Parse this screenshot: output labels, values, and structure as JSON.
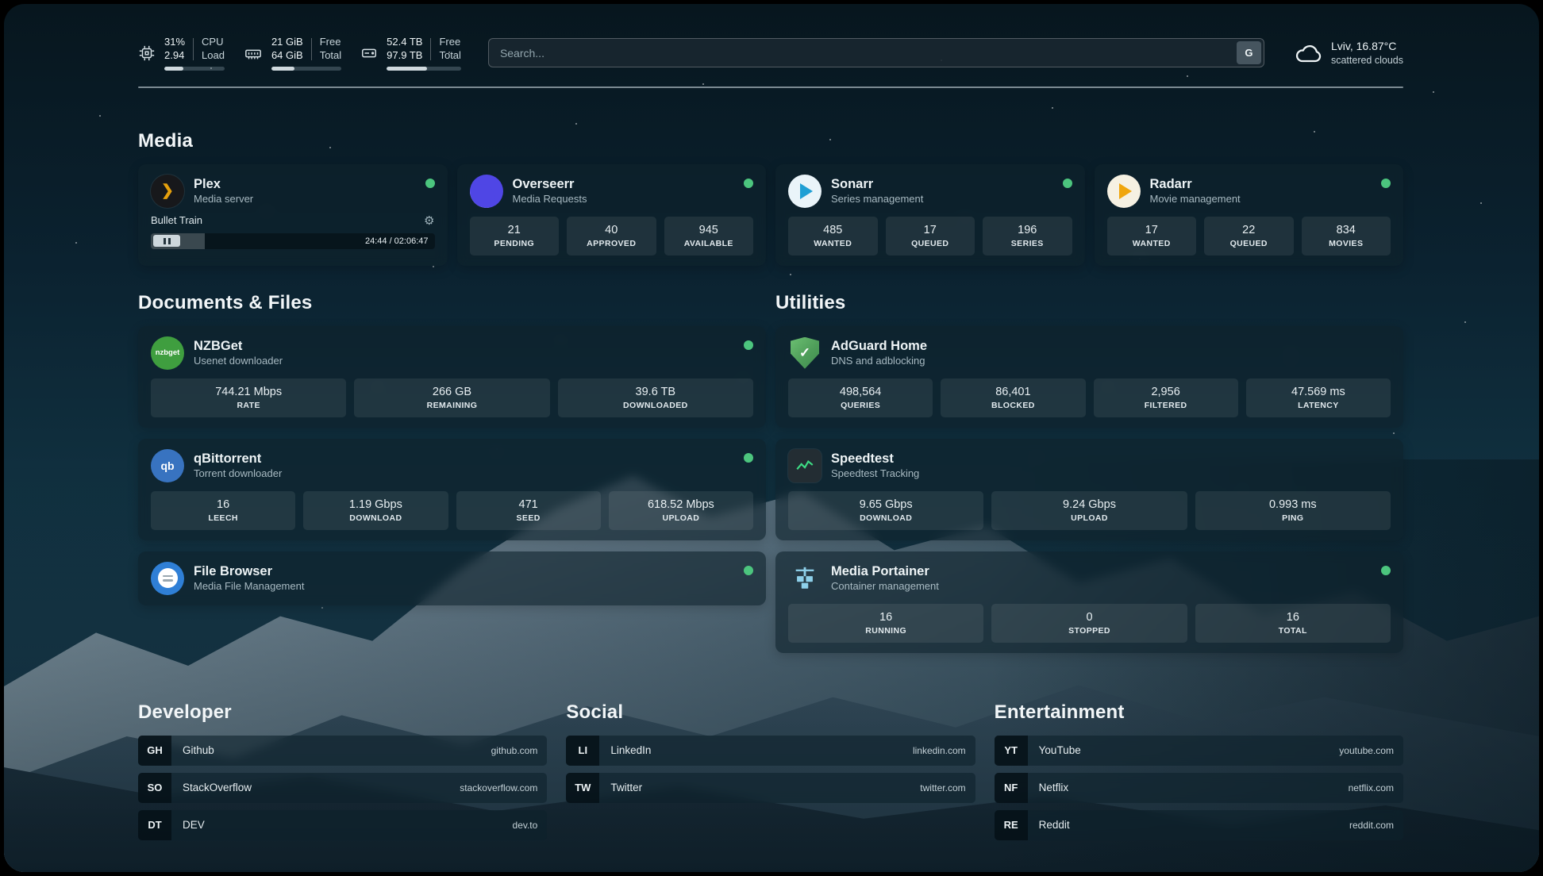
{
  "colors": {
    "status_online": "#4cc57e",
    "accent_amber": "#e5a00d"
  },
  "icons": {
    "plex_glyph": "❯",
    "gear": "⚙",
    "check": "✓",
    "nzbget_label": "nzbget",
    "qb_label": "qb"
  },
  "topbar": {
    "cpu": {
      "value": "31%",
      "sub": "2.94",
      "unit_top": "CPU",
      "unit_bottom": "Load",
      "progress_pct": 31
    },
    "ram": {
      "value": "21 GiB",
      "sub": "64 GiB",
      "unit_top": "Free",
      "unit_bottom": "Total",
      "progress_pct": 33
    },
    "disk": {
      "value": "52.4 TB",
      "sub": "97.9 TB",
      "unit_top": "Free",
      "unit_bottom": "Total",
      "progress_pct": 54
    },
    "search": {
      "placeholder": "Search...",
      "engine_button": "G"
    },
    "weather": {
      "location": "Lviv, 16.87°C",
      "condition": "scattered clouds"
    }
  },
  "sections": {
    "media": {
      "title": "Media",
      "apps": [
        {
          "name": "Plex",
          "desc": "Media server",
          "online": true,
          "player": {
            "title": "Bullet Train",
            "time": "24:44 / 02:06:47",
            "progress_pct": 19
          }
        },
        {
          "name": "Overseerr",
          "desc": "Media Requests",
          "online": true,
          "stats": [
            {
              "value": "21",
              "label": "PENDING"
            },
            {
              "value": "40",
              "label": "APPROVED"
            },
            {
              "value": "945",
              "label": "AVAILABLE"
            }
          ]
        },
        {
          "name": "Sonarr",
          "desc": "Series management",
          "online": true,
          "stats": [
            {
              "value": "485",
              "label": "WANTED"
            },
            {
              "value": "17",
              "label": "QUEUED"
            },
            {
              "value": "196",
              "label": "SERIES"
            }
          ]
        },
        {
          "name": "Radarr",
          "desc": "Movie management",
          "online": true,
          "stats": [
            {
              "value": "17",
              "label": "WANTED"
            },
            {
              "value": "22",
              "label": "QUEUED"
            },
            {
              "value": "834",
              "label": "MOVIES"
            }
          ]
        }
      ]
    },
    "documents": {
      "title": "Documents & Files",
      "apps": [
        {
          "name": "NZBGet",
          "desc": "Usenet downloader",
          "online": true,
          "stats": [
            {
              "value": "744.21 Mbps",
              "label": "RATE"
            },
            {
              "value": "266 GB",
              "label": "REMAINING"
            },
            {
              "value": "39.6 TB",
              "label": "DOWNLOADED"
            }
          ]
        },
        {
          "name": "qBittorrent",
          "desc": "Torrent downloader",
          "online": true,
          "stats": [
            {
              "value": "16",
              "label": "LEECH"
            },
            {
              "value": "1.19 Gbps",
              "label": "DOWNLOAD"
            },
            {
              "value": "471",
              "label": "SEED"
            },
            {
              "value": "618.52 Mbps",
              "label": "UPLOAD"
            }
          ]
        },
        {
          "name": "File Browser",
          "desc": "Media File Management",
          "online": true,
          "stats": []
        }
      ]
    },
    "utilities": {
      "title": "Utilities",
      "apps": [
        {
          "name": "AdGuard Home",
          "desc": "DNS and adblocking",
          "online": false,
          "stats": [
            {
              "value": "498,564",
              "label": "QUERIES"
            },
            {
              "value": "86,401",
              "label": "BLOCKED"
            },
            {
              "value": "2,956",
              "label": "FILTERED"
            },
            {
              "value": "47.569 ms",
              "label": "LATENCY"
            }
          ]
        },
        {
          "name": "Speedtest",
          "desc": "Speedtest Tracking",
          "online": false,
          "stats": [
            {
              "value": "9.65 Gbps",
              "label": "DOWNLOAD"
            },
            {
              "value": "9.24 Gbps",
              "label": "UPLOAD"
            },
            {
              "value": "0.993 ms",
              "label": "PING"
            }
          ]
        },
        {
          "name": "Media Portainer",
          "desc": "Container management",
          "online": true,
          "stats": [
            {
              "value": "16",
              "label": "RUNNING"
            },
            {
              "value": "0",
              "label": "STOPPED"
            },
            {
              "value": "16",
              "label": "TOTAL"
            }
          ]
        }
      ]
    }
  },
  "bookmarks": {
    "groups": [
      {
        "title": "Developer",
        "items": [
          {
            "abbr": "GH",
            "name": "Github",
            "url": "github.com"
          },
          {
            "abbr": "SO",
            "name": "StackOverflow",
            "url": "stackoverflow.com"
          },
          {
            "abbr": "DT",
            "name": "DEV",
            "url": "dev.to"
          }
        ]
      },
      {
        "title": "Social",
        "items": [
          {
            "abbr": "LI",
            "name": "LinkedIn",
            "url": "linkedin.com"
          },
          {
            "abbr": "TW",
            "name": "Twitter",
            "url": "twitter.com"
          }
        ]
      },
      {
        "title": "Entertainment",
        "items": [
          {
            "abbr": "YT",
            "name": "YouTube",
            "url": "youtube.com"
          },
          {
            "abbr": "NF",
            "name": "Netflix",
            "url": "netflix.com"
          },
          {
            "abbr": "RE",
            "name": "Reddit",
            "url": "reddit.com"
          }
        ]
      }
    ]
  }
}
